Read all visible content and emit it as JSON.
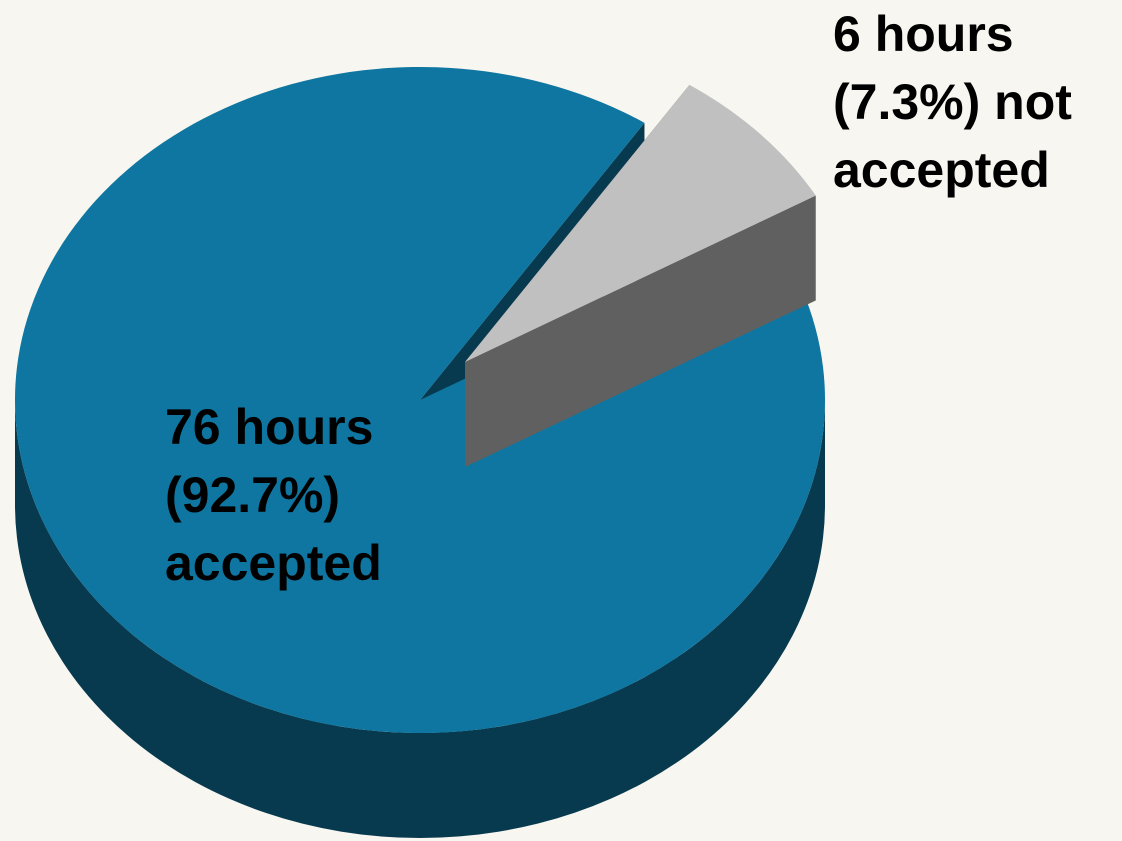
{
  "chart_data": {
    "type": "pie3d",
    "values": [
      76,
      6
    ],
    "value_labels": [
      "76 hours (92.7%) accepted",
      "6 hours (7.3%) not accepted"
    ],
    "colors": [
      "#0e76a0",
      "#c0c0c0"
    ],
    "side_colors": [
      "#083a4f",
      "#606060"
    ],
    "exploded": [
      false,
      true
    ]
  }
}
